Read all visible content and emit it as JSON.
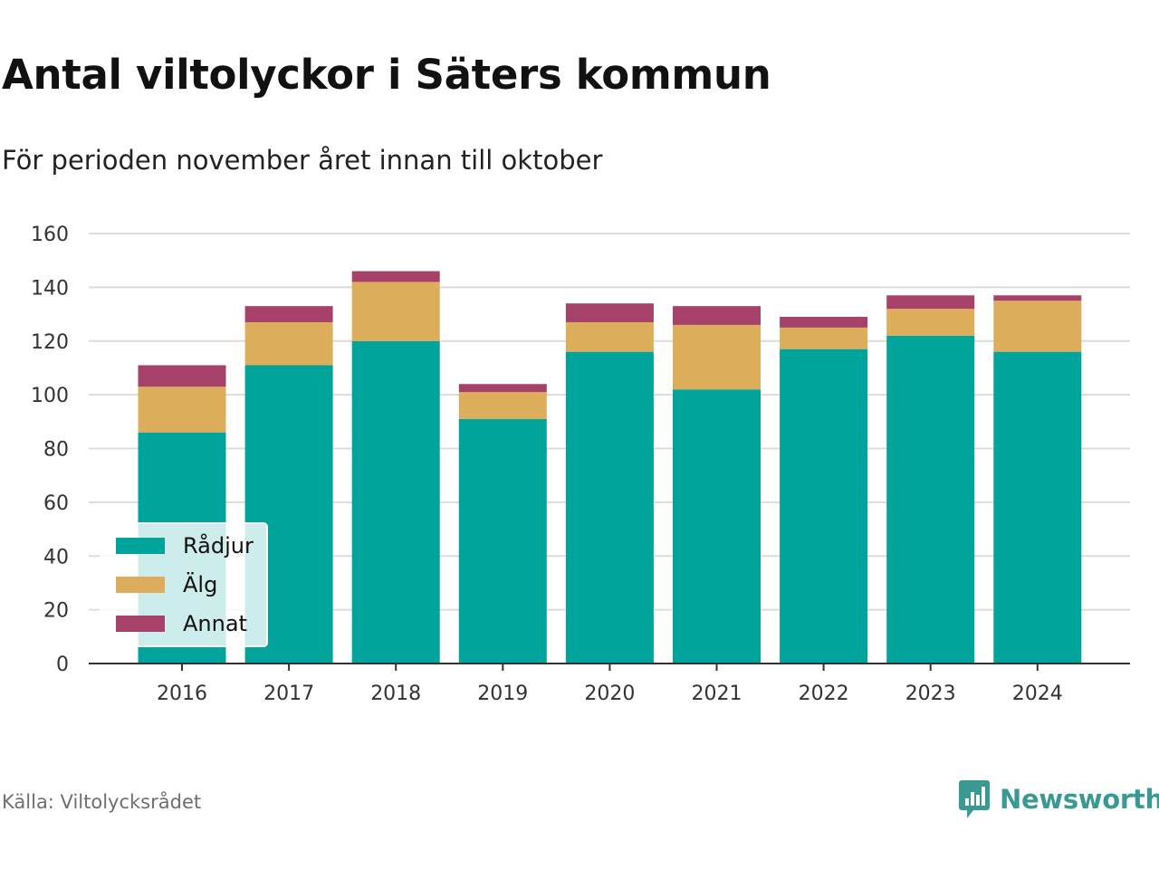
{
  "header": {
    "title": "Antal viltolyckor i Säters kommun",
    "subtitle": "För perioden november året innan till oktober"
  },
  "footer": {
    "source": "Källa: Viltolycksrådet",
    "brand": "Newsworthy",
    "brand_icon": "bar-chart-speech-bubble-icon",
    "brand_color": "#3a9a93"
  },
  "chart_data": {
    "type": "bar",
    "stacked": true,
    "categories": [
      "2016",
      "2017",
      "2018",
      "2019",
      "2020",
      "2021",
      "2022",
      "2023",
      "2024"
    ],
    "series": [
      {
        "name": "Rådjur",
        "color": "#00a49a",
        "values": [
          86,
          111,
          120,
          91,
          116,
          102,
          117,
          122,
          116
        ]
      },
      {
        "name": "Älg",
        "color": "#dcad5a",
        "values": [
          17,
          16,
          22,
          10,
          11,
          24,
          8,
          10,
          19
        ]
      },
      {
        "name": "Annat",
        "color": "#a6416a",
        "values": [
          8,
          6,
          4,
          3,
          7,
          7,
          4,
          5,
          2
        ]
      }
    ],
    "ylim": [
      0,
      160
    ],
    "yticks": [
      0,
      20,
      40,
      60,
      80,
      100,
      120,
      140,
      160
    ],
    "grid": true,
    "legend_position": "bottom-left"
  }
}
